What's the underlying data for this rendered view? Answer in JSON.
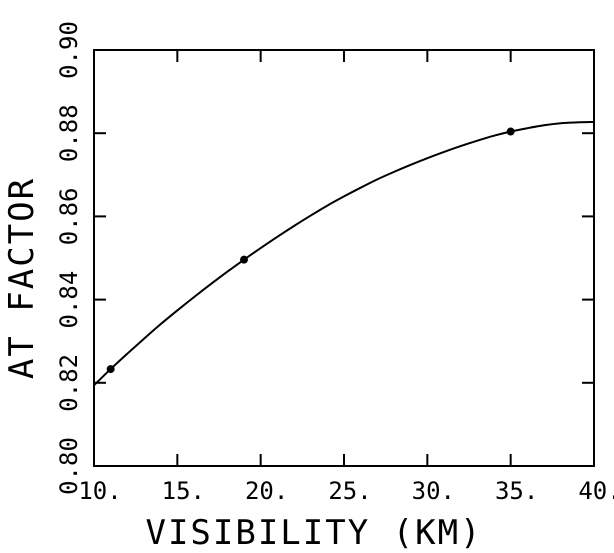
{
  "chart_data": {
    "type": "line",
    "title": "",
    "xlabel": "VISIBILITY (KM)",
    "ylabel": "AT FACTOR",
    "xlim": [
      10,
      40
    ],
    "ylim": [
      0.8,
      0.9
    ],
    "xticks": [
      10,
      15,
      20,
      25,
      30,
      35,
      40
    ],
    "xtick_labels": [
      "10.",
      "15.",
      "20.",
      "25.",
      "30.",
      "35.",
      "40."
    ],
    "yticks": [
      0.8,
      0.82,
      0.84,
      0.86,
      0.88,
      0.9
    ],
    "ytick_labels": [
      "0.80",
      "0.82",
      "0.84",
      "0.86",
      "0.88",
      "0.90"
    ],
    "grid": false,
    "legend": "none",
    "line_color": "#000000",
    "series": [
      {
        "type": "line",
        "x": [
          10,
          11,
          12,
          13,
          14,
          15,
          16,
          17,
          18,
          19,
          20,
          21,
          22,
          23,
          24,
          25,
          26,
          27,
          28,
          29,
          30,
          31,
          32,
          33,
          34,
          35,
          36,
          37,
          38,
          39,
          40
        ],
        "y": [
          0.8194,
          0.8233,
          0.827,
          0.8306,
          0.8341,
          0.8374,
          0.8406,
          0.8437,
          0.8467,
          0.8496,
          0.8524,
          0.8551,
          0.8577,
          0.8602,
          0.8626,
          0.8648,
          0.8669,
          0.8689,
          0.8707,
          0.8724,
          0.874,
          0.8755,
          0.8769,
          0.8782,
          0.8794,
          0.8804,
          0.8812,
          0.8819,
          0.8824,
          0.8826,
          0.8827
        ]
      },
      {
        "type": "scatter",
        "x": [
          11,
          19,
          35
        ],
        "y": [
          0.8233,
          0.8496,
          0.8804
        ]
      }
    ]
  }
}
